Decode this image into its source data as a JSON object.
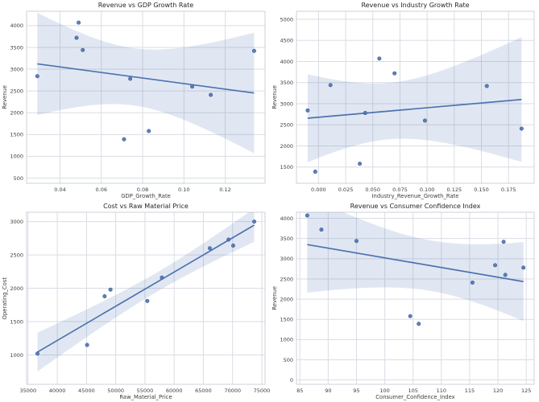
{
  "figure": {
    "background": "#ffffff"
  },
  "style": {
    "line_color": "#4c72b0",
    "band_color": "#4c72b0",
    "band_opacity": 0.17,
    "point_color": "#4c72b0",
    "point_edge_color": "#3d5f97",
    "grid_color": "#d9dde4",
    "spine_color": "#ccd1d9",
    "title_color": "#262626",
    "tick_color": "#3d3d3d"
  },
  "chart_data": [
    {
      "type": "scatter",
      "regression": true,
      "ci": 95,
      "grid": true,
      "legend": "none",
      "title": "Revenue vs GDP Growth Rate",
      "xlabel": "GDP_Growth_Rate",
      "ylabel": "Revenue",
      "x": [
        0.029,
        0.049,
        0.048,
        0.051,
        0.074,
        0.071,
        0.083,
        0.104,
        0.113,
        0.134
      ],
      "y": [
        2840,
        4070,
        3720,
        3440,
        2780,
        1390,
        1580,
        2600,
        2410,
        3420
      ],
      "xlim": [
        0.0238,
        0.1393
      ],
      "ylim": [
        380,
        4330
      ],
      "xticks": {
        "values": [
          0.04,
          0.06,
          0.08,
          0.1,
          0.12
        ],
        "labels": [
          "0.04",
          "0.06",
          "0.08",
          "0.10",
          "0.12"
        ]
      },
      "yticks": {
        "values": [
          500,
          1000,
          1500,
          2000,
          2500,
          3000,
          3500,
          4000
        ],
        "labels": [
          "500",
          "1000",
          "1500",
          "2000",
          "2500",
          "3000",
          "3500",
          "4000"
        ]
      }
    },
    {
      "type": "scatter",
      "regression": true,
      "ci": 95,
      "grid": true,
      "legend": "none",
      "title": "Revenue vs Industry Growth Rate",
      "xlabel": "Industry_Revenue_Growth_Rate",
      "ylabel": "Revenue",
      "x": [
        -0.01,
        0.056,
        0.07,
        0.011,
        0.043,
        -0.003,
        0.038,
        0.098,
        0.155,
        0.187
      ],
      "y": [
        2840,
        4070,
        3720,
        3440,
        2780,
        1390,
        1580,
        2600,
        3420,
        2410
      ],
      "xlim": [
        -0.0203,
        0.1986
      ],
      "ylim": [
        1115,
        5190
      ],
      "xticks": {
        "values": [
          0.0,
          0.025,
          0.05,
          0.075,
          0.1,
          0.125,
          0.15,
          0.175
        ],
        "labels": [
          "0.000",
          "0.025",
          "0.050",
          "0.075",
          "0.100",
          "0.125",
          "0.150",
          "0.175"
        ]
      },
      "yticks": {
        "values": [
          1500,
          2000,
          2500,
          3000,
          3500,
          4000,
          4500,
          5000
        ],
        "labels": [
          "1500",
          "2000",
          "2500",
          "3000",
          "3500",
          "4000",
          "4500",
          "5000"
        ]
      }
    },
    {
      "type": "scatter",
      "regression": true,
      "ci": 95,
      "grid": true,
      "legend": "none",
      "title": "Cost vs Raw Material Price",
      "xlabel": "Raw_Material_Price",
      "ylabel": "Operating_Cost",
      "x": [
        36600,
        45100,
        48100,
        49100,
        55400,
        57900,
        66100,
        69300,
        70100,
        73700
      ],
      "y": [
        1020,
        1150,
        1880,
        1980,
        1810,
        2160,
        2600,
        2730,
        2640,
        3000
      ],
      "xlim": [
        34745,
        75555
      ],
      "ylim": [
        560,
        3140
      ],
      "xticks": {
        "values": [
          35000,
          40000,
          45000,
          50000,
          55000,
          60000,
          65000,
          70000,
          75000
        ],
        "labels": [
          "35000",
          "40000",
          "45000",
          "50000",
          "55000",
          "60000",
          "65000",
          "70000",
          "75000"
        ]
      },
      "yticks": {
        "values": [
          1000,
          1500,
          2000,
          2500,
          3000
        ],
        "labels": [
          "1000",
          "1500",
          "2000",
          "2500",
          "3000"
        ]
      }
    },
    {
      "type": "scatter",
      "regression": true,
      "ci": 95,
      "grid": true,
      "legend": "none",
      "title": "Revenue vs Consumer Confidence Index",
      "xlabel": "Consumer_Confidence_Index",
      "ylabel": "Revenue",
      "x": [
        119.5,
        86.3,
        88.8,
        95.0,
        124.5,
        106.0,
        104.5,
        121.3,
        115.5,
        121.0
      ],
      "y": [
        2840,
        4070,
        3720,
        3440,
        2780,
        1390,
        1580,
        2600,
        2410,
        3420
      ],
      "xlim": [
        84.4,
        126.4
      ],
      "ylim": [
        -106,
        4150
      ],
      "xticks": {
        "values": [
          85,
          90,
          95,
          100,
          105,
          110,
          115,
          120,
          125
        ],
        "labels": [
          "85",
          "90",
          "95",
          "100",
          "105",
          "110",
          "115",
          "120",
          "125"
        ]
      },
      "yticks": {
        "values": [
          0,
          500,
          1000,
          1500,
          2000,
          2500,
          3000,
          3500,
          4000
        ],
        "labels": [
          "0",
          "500",
          "1000",
          "1500",
          "2000",
          "2500",
          "3000",
          "3500",
          "4000"
        ]
      }
    }
  ]
}
